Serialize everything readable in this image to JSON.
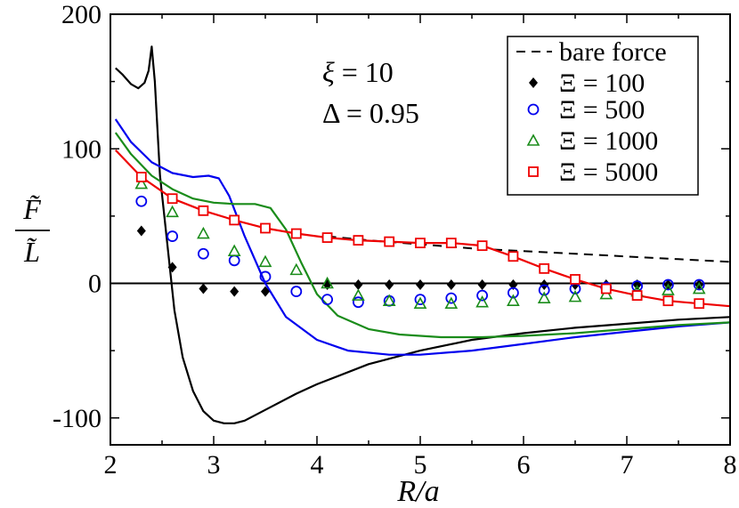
{
  "chart_data": {
    "type": "line",
    "xlabel": "R/a",
    "ylabel": "F̃ / L̃",
    "ylabel_numerator": "F̃",
    "ylabel_denominator": "L̃",
    "xlim": [
      2,
      8
    ],
    "ylim": [
      -120,
      200
    ],
    "xticks": [
      2,
      3,
      4,
      5,
      6,
      7,
      8
    ],
    "yticks": [
      -100,
      0,
      100,
      200
    ],
    "xtick_labels": [
      "2",
      "3",
      "4",
      "5",
      "6",
      "7",
      "8"
    ],
    "ytick_labels": [
      "-100",
      "0",
      "100",
      "200"
    ],
    "grid": false,
    "legend_position": "top-right",
    "annotations": [
      {
        "symbol": "ξ",
        "text": " = 10"
      },
      {
        "symbol": "Δ",
        "text": " = 0.95"
      }
    ],
    "zero_line": true,
    "series": [
      {
        "name": "bare force",
        "legend_label": "bare force",
        "style": "dashed",
        "color": "#000000",
        "x": [
          4.1,
          4.5,
          5.0,
          5.5,
          6.0,
          6.5,
          7.0,
          7.5,
          8.0
        ],
        "y": [
          35,
          32,
          29,
          26,
          24,
          22,
          20,
          18,
          16
        ]
      },
      {
        "name": "Ξ = 100",
        "legend_label": "Ξ = 100",
        "style": "markers+line",
        "marker": "diamond",
        "color": "#000000",
        "points_x": [
          2.3,
          2.6,
          2.9,
          3.2,
          3.5,
          4.1,
          4.4,
          4.7,
          5.0,
          5.3,
          5.6,
          5.9,
          6.2,
          6.5,
          6.8,
          7.1,
          7.4,
          7.7
        ],
        "points_y": [
          39,
          12,
          -4,
          -6,
          -6,
          -1,
          -1,
          -1,
          -1,
          -1,
          -1,
          -1,
          -1,
          -1,
          -1,
          -1,
          -1,
          -1
        ],
        "line_x": [
          2.05,
          2.12,
          2.2,
          2.27,
          2.33,
          2.37,
          2.4,
          2.43,
          2.48,
          2.55,
          2.62,
          2.7,
          2.8,
          2.9,
          3.0,
          3.1,
          3.2,
          3.3,
          3.5,
          3.8,
          4.0,
          4.5,
          5.0,
          5.5,
          6.0,
          6.5,
          7.0,
          7.5,
          8.0
        ],
        "line_y": [
          160,
          155,
          148,
          145,
          149,
          158,
          176,
          150,
          80,
          30,
          -20,
          -55,
          -80,
          -95,
          -102,
          -104,
          -104,
          -102,
          -94,
          -82,
          -75,
          -60,
          -50,
          -42,
          -37,
          -33,
          -30,
          -27,
          -25
        ]
      },
      {
        "name": "Ξ = 500",
        "legend_label": "Ξ = 500",
        "style": "markers+line",
        "marker": "circle",
        "color": "#0000ee",
        "points_x": [
          2.3,
          2.6,
          2.9,
          3.2,
          3.5,
          3.8,
          4.1,
          4.4,
          4.7,
          5.0,
          5.3,
          5.6,
          5.9,
          6.2,
          6.5,
          6.8,
          7.1,
          7.4,
          7.7
        ],
        "points_y": [
          61,
          35,
          22,
          17,
          5,
          -6,
          -12,
          -14,
          -13,
          -12,
          -11,
          -9,
          -7,
          -5,
          -4,
          -3,
          -2,
          -1,
          -1
        ],
        "line_x": [
          2.05,
          2.2,
          2.4,
          2.6,
          2.8,
          2.95,
          3.05,
          3.15,
          3.3,
          3.5,
          3.7,
          4.0,
          4.3,
          4.7,
          5.0,
          5.5,
          6.0,
          6.5,
          7.0,
          7.5,
          8.0
        ],
        "line_y": [
          122,
          105,
          90,
          82,
          79,
          80,
          78,
          65,
          35,
          0,
          -25,
          -42,
          -50,
          -53,
          -53,
          -50,
          -45,
          -40,
          -36,
          -32,
          -29
        ]
      },
      {
        "name": "Ξ = 1000",
        "legend_label": "Ξ = 1000",
        "style": "markers+line",
        "marker": "triangle",
        "color": "#1a8c1a",
        "points_x": [
          2.3,
          2.6,
          2.9,
          3.2,
          3.5,
          3.8,
          4.1,
          4.4,
          4.7,
          5.0,
          5.3,
          5.6,
          5.9,
          6.2,
          6.5,
          6.8,
          7.1,
          7.4,
          7.7
        ],
        "points_y": [
          74,
          53,
          37,
          24,
          16,
          10,
          0,
          -9,
          -13,
          -15,
          -15,
          -14,
          -13,
          -11,
          -10,
          -8,
          -6,
          -5,
          -4
        ],
        "line_x": [
          2.05,
          2.2,
          2.4,
          2.6,
          2.8,
          3.0,
          3.2,
          3.4,
          3.55,
          3.7,
          3.85,
          4.0,
          4.2,
          4.5,
          4.8,
          5.2,
          5.6,
          6.0,
          6.5,
          7.0,
          7.5,
          8.0
        ],
        "line_y": [
          112,
          96,
          80,
          70,
          63,
          60,
          59,
          59,
          56,
          40,
          15,
          -8,
          -24,
          -34,
          -38,
          -40,
          -40,
          -39,
          -37,
          -34,
          -31,
          -29
        ]
      },
      {
        "name": "Ξ = 5000",
        "legend_label": "Ξ = 5000",
        "style": "markers+line",
        "marker": "square",
        "color": "#ee0000",
        "points_x": [
          2.3,
          2.6,
          2.9,
          3.2,
          3.5,
          3.8,
          4.1,
          4.4,
          4.7,
          5.0,
          5.3,
          5.6,
          5.9,
          6.2,
          6.5,
          6.8,
          7.1,
          7.4,
          7.7
        ],
        "points_y": [
          79,
          63,
          54,
          47,
          41,
          37,
          34,
          32,
          31,
          30,
          30,
          28,
          20,
          11,
          3,
          -4,
          -9,
          -13,
          -15
        ],
        "line_x": [
          2.05,
          2.3,
          2.6,
          2.9,
          3.2,
          3.5,
          3.8,
          4.1,
          4.4,
          4.7,
          5.0,
          5.3,
          5.6,
          5.9,
          6.2,
          6.5,
          6.8,
          7.1,
          7.4,
          7.7,
          8.0
        ],
        "line_y": [
          99,
          79,
          63,
          54,
          47,
          41,
          37,
          34,
          32,
          31,
          30,
          30,
          28,
          20,
          11,
          3,
          -4,
          -9,
          -13,
          -15,
          -17
        ]
      }
    ]
  }
}
